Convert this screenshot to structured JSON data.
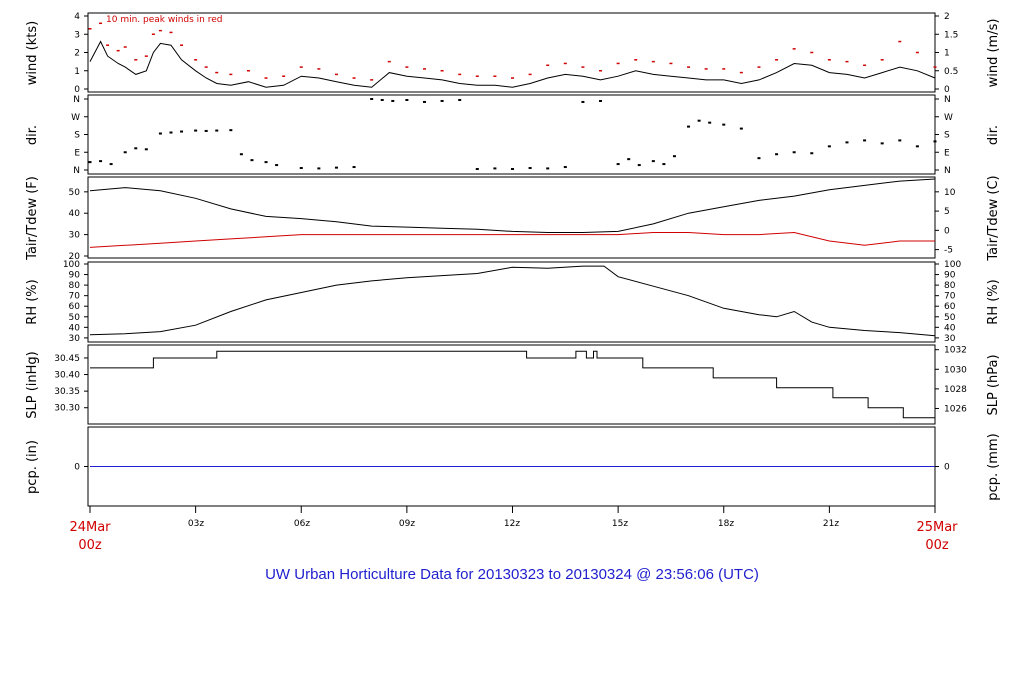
{
  "caption": "UW Urban Horticulture Data for 20130323  to  20130324 @ 23:56:06  (UTC)",
  "colors": {
    "primary": "#000000",
    "peak_and_dewpoint": "#d00000",
    "precip_and_caption": "#1f1fcf"
  },
  "x_axis": {
    "ticks": [
      "03z",
      "06z",
      "09z",
      "12z",
      "15z",
      "18z",
      "21z"
    ],
    "start": {
      "date": "24Mar",
      "time": "00z"
    },
    "end": {
      "date": "25Mar",
      "time": "00z"
    }
  },
  "chart_data": [
    {
      "type": "line",
      "name": "wind",
      "ylabel": "wind (kts)",
      "ylabel_right": "wind (m/s)",
      "annotation": "10 min. peak winds in red",
      "yticks": [
        "4",
        "3",
        "2",
        "1",
        "0"
      ],
      "yticks_right": [
        "2",
        "1.5",
        "1",
        "0.5",
        "0"
      ],
      "ylim": [
        0,
        4
      ],
      "x_hours": [
        0,
        0.3,
        0.5,
        0.8,
        1,
        1.3,
        1.6,
        1.8,
        2,
        2.3,
        2.6,
        3,
        3.3,
        3.6,
        4,
        4.5,
        5,
        5.5,
        6,
        6.5,
        7,
        7.5,
        8,
        8.5,
        9,
        9.5,
        10,
        10.5,
        11,
        11.5,
        12,
        12.5,
        13,
        13.5,
        14,
        14.5,
        15,
        15.5,
        16,
        16.5,
        17,
        17.5,
        18,
        18.5,
        19,
        19.5,
        20,
        20.5,
        21,
        21.5,
        22,
        22.5,
        23,
        23.5,
        24
      ],
      "values": [
        1.5,
        2.6,
        1.8,
        1.4,
        1.2,
        0.8,
        1.0,
        2.0,
        2.5,
        2.4,
        1.6,
        1.0,
        0.6,
        0.3,
        0.2,
        0.4,
        0.1,
        0.2,
        0.7,
        0.6,
        0.4,
        0.2,
        0.1,
        0.9,
        0.7,
        0.6,
        0.5,
        0.3,
        0.2,
        0.2,
        0.1,
        0.3,
        0.6,
        0.8,
        0.7,
        0.5,
        0.7,
        1.0,
        0.8,
        0.7,
        0.6,
        0.5,
        0.5,
        0.3,
        0.5,
        0.9,
        1.4,
        1.3,
        0.9,
        0.8,
        0.6,
        0.9,
        1.2,
        1.0,
        0.6
      ],
      "peak_values": [
        3.3,
        3.6,
        2.4,
        2.1,
        2.3,
        1.6,
        1.8,
        3.0,
        3.2,
        3.1,
        2.4,
        1.6,
        1.2,
        0.9,
        0.8,
        1.0,
        0.6,
        0.7,
        1.2,
        1.1,
        0.8,
        0.6,
        0.5,
        1.5,
        1.2,
        1.1,
        1.0,
        0.8,
        0.7,
        0.7,
        0.6,
        0.8,
        1.3,
        1.4,
        1.2,
        1.0,
        1.4,
        1.6,
        1.5,
        1.4,
        1.2,
        1.1,
        1.1,
        0.9,
        1.2,
        1.6,
        2.2,
        2.0,
        1.6,
        1.5,
        1.3,
        1.6,
        2.6,
        2.0,
        1.2
      ]
    },
    {
      "type": "scatter",
      "name": "direction",
      "ylabel": "dir.",
      "yticks": [
        "N",
        "W",
        "S",
        "E",
        "N"
      ],
      "ylim": [
        0,
        360
      ],
      "x_hours": [
        0,
        0.3,
        0.6,
        1,
        1.3,
        1.6,
        2,
        2.3,
        2.6,
        3,
        3.3,
        3.6,
        4,
        4.3,
        4.6,
        5,
        5.3,
        6,
        6.5,
        7,
        7.5,
        8,
        8.3,
        8.6,
        9,
        9.5,
        10,
        10.5,
        11,
        11.5,
        12,
        12.5,
        13,
        13.5,
        14,
        14.5,
        15,
        15.3,
        15.6,
        16,
        16.3,
        16.6,
        17,
        17.3,
        17.6,
        18,
        18.5,
        19,
        19.5,
        20,
        20.5,
        21,
        21.5,
        22,
        22.5,
        23,
        23.5,
        24
      ],
      "values": [
        40,
        45,
        30,
        90,
        110,
        105,
        185,
        190,
        195,
        200,
        198,
        200,
        202,
        80,
        50,
        40,
        25,
        10,
        8,
        12,
        15,
        360,
        355,
        350,
        355,
        345,
        350,
        355,
        5,
        8,
        5,
        10,
        8,
        15,
        345,
        350,
        30,
        55,
        25,
        45,
        30,
        70,
        220,
        250,
        240,
        230,
        210,
        60,
        80,
        90,
        85,
        120,
        140,
        150,
        135,
        150,
        120,
        145
      ]
    },
    {
      "type": "line",
      "name": "temperature",
      "ylabel": "Tair/Tdew (F)",
      "ylabel_right": "Tair/Tdew (C)",
      "yticks": [
        "50",
        "40",
        "30",
        "20"
      ],
      "yticks_right": [
        "10",
        "5",
        "0",
        "-5"
      ],
      "ylim": [
        20,
        56
      ],
      "x_hours": [
        0,
        1,
        2,
        3,
        4,
        5,
        6,
        7,
        8,
        9,
        10,
        11,
        12,
        13,
        14,
        15,
        16,
        17,
        18,
        19,
        20,
        21,
        22,
        23,
        24
      ],
      "series": [
        {
          "name": "Tair",
          "color": "#000000",
          "values": [
            50.5,
            52,
            50.5,
            47,
            42,
            38.5,
            37.5,
            36,
            34,
            33.5,
            33,
            32.5,
            31.5,
            31,
            31,
            31.5,
            35,
            40,
            43,
            46,
            48,
            51,
            53,
            55,
            56
          ]
        },
        {
          "name": "Tdew",
          "color": "#d00000",
          "values": [
            24,
            25,
            26,
            27,
            28,
            29,
            30,
            30,
            30,
            30,
            30,
            30,
            30,
            30,
            30,
            30,
            31,
            31,
            30,
            30,
            31,
            27,
            25,
            27,
            27
          ]
        }
      ]
    },
    {
      "type": "line",
      "name": "relative_humidity",
      "ylabel": "RH (%)",
      "ylabel_right": "RH (%)",
      "yticks": [
        "100",
        "90",
        "80",
        "70",
        "60",
        "50",
        "40",
        "30"
      ],
      "ylim": [
        28,
        100
      ],
      "x_hours": [
        0,
        1,
        2,
        3,
        4,
        5,
        6,
        7,
        8,
        9,
        10,
        11,
        12,
        13,
        14,
        14.6,
        15,
        16,
        17,
        18,
        19,
        19.5,
        20,
        20.5,
        21,
        22,
        23,
        24
      ],
      "values": [
        33,
        34,
        36,
        42,
        55,
        66,
        73,
        80,
        84,
        87,
        89,
        91,
        97,
        96,
        98,
        98,
        88,
        79,
        70,
        58,
        52,
        50,
        55,
        45,
        40,
        37,
        35,
        32
      ]
    },
    {
      "type": "line",
      "name": "pressure",
      "ylabel": "SLP (inHg)",
      "ylabel_right": "SLP (hPa)",
      "yticks": [
        "30.45",
        "30.40",
        "30.35",
        "30.30"
      ],
      "yticks_right": [
        "1032",
        "1030",
        "1028",
        "1026"
      ],
      "ylim": [
        30.26,
        30.48
      ],
      "x_hours": [
        0,
        1.8,
        1.8,
        3.6,
        3.6,
        12.4,
        12.4,
        13.8,
        13.8,
        14.1,
        14.1,
        14.3,
        14.3,
        14.4,
        14.4,
        15.7,
        15.7,
        15.8,
        15.8,
        17.7,
        17.7,
        19.5,
        19.5,
        21.1,
        21.1,
        22.1,
        22.1,
        23.1,
        23.1,
        24
      ],
      "values": [
        30.42,
        30.42,
        30.45,
        30.45,
        30.47,
        30.47,
        30.45,
        30.45,
        30.47,
        30.47,
        30.45,
        30.45,
        30.47,
        30.47,
        30.45,
        30.45,
        30.42,
        30.42,
        30.42,
        30.42,
        30.39,
        30.39,
        30.36,
        30.36,
        30.33,
        30.33,
        30.3,
        30.3,
        30.27,
        30.27
      ]
    },
    {
      "type": "line",
      "name": "precipitation",
      "ylabel": "pcp. (in)",
      "ylabel_right": "pcp. (mm)",
      "yticks": [
        "0"
      ],
      "yticks_right": [
        "0"
      ],
      "x_hours": [
        0,
        24
      ],
      "values": [
        0,
        0
      ]
    }
  ]
}
